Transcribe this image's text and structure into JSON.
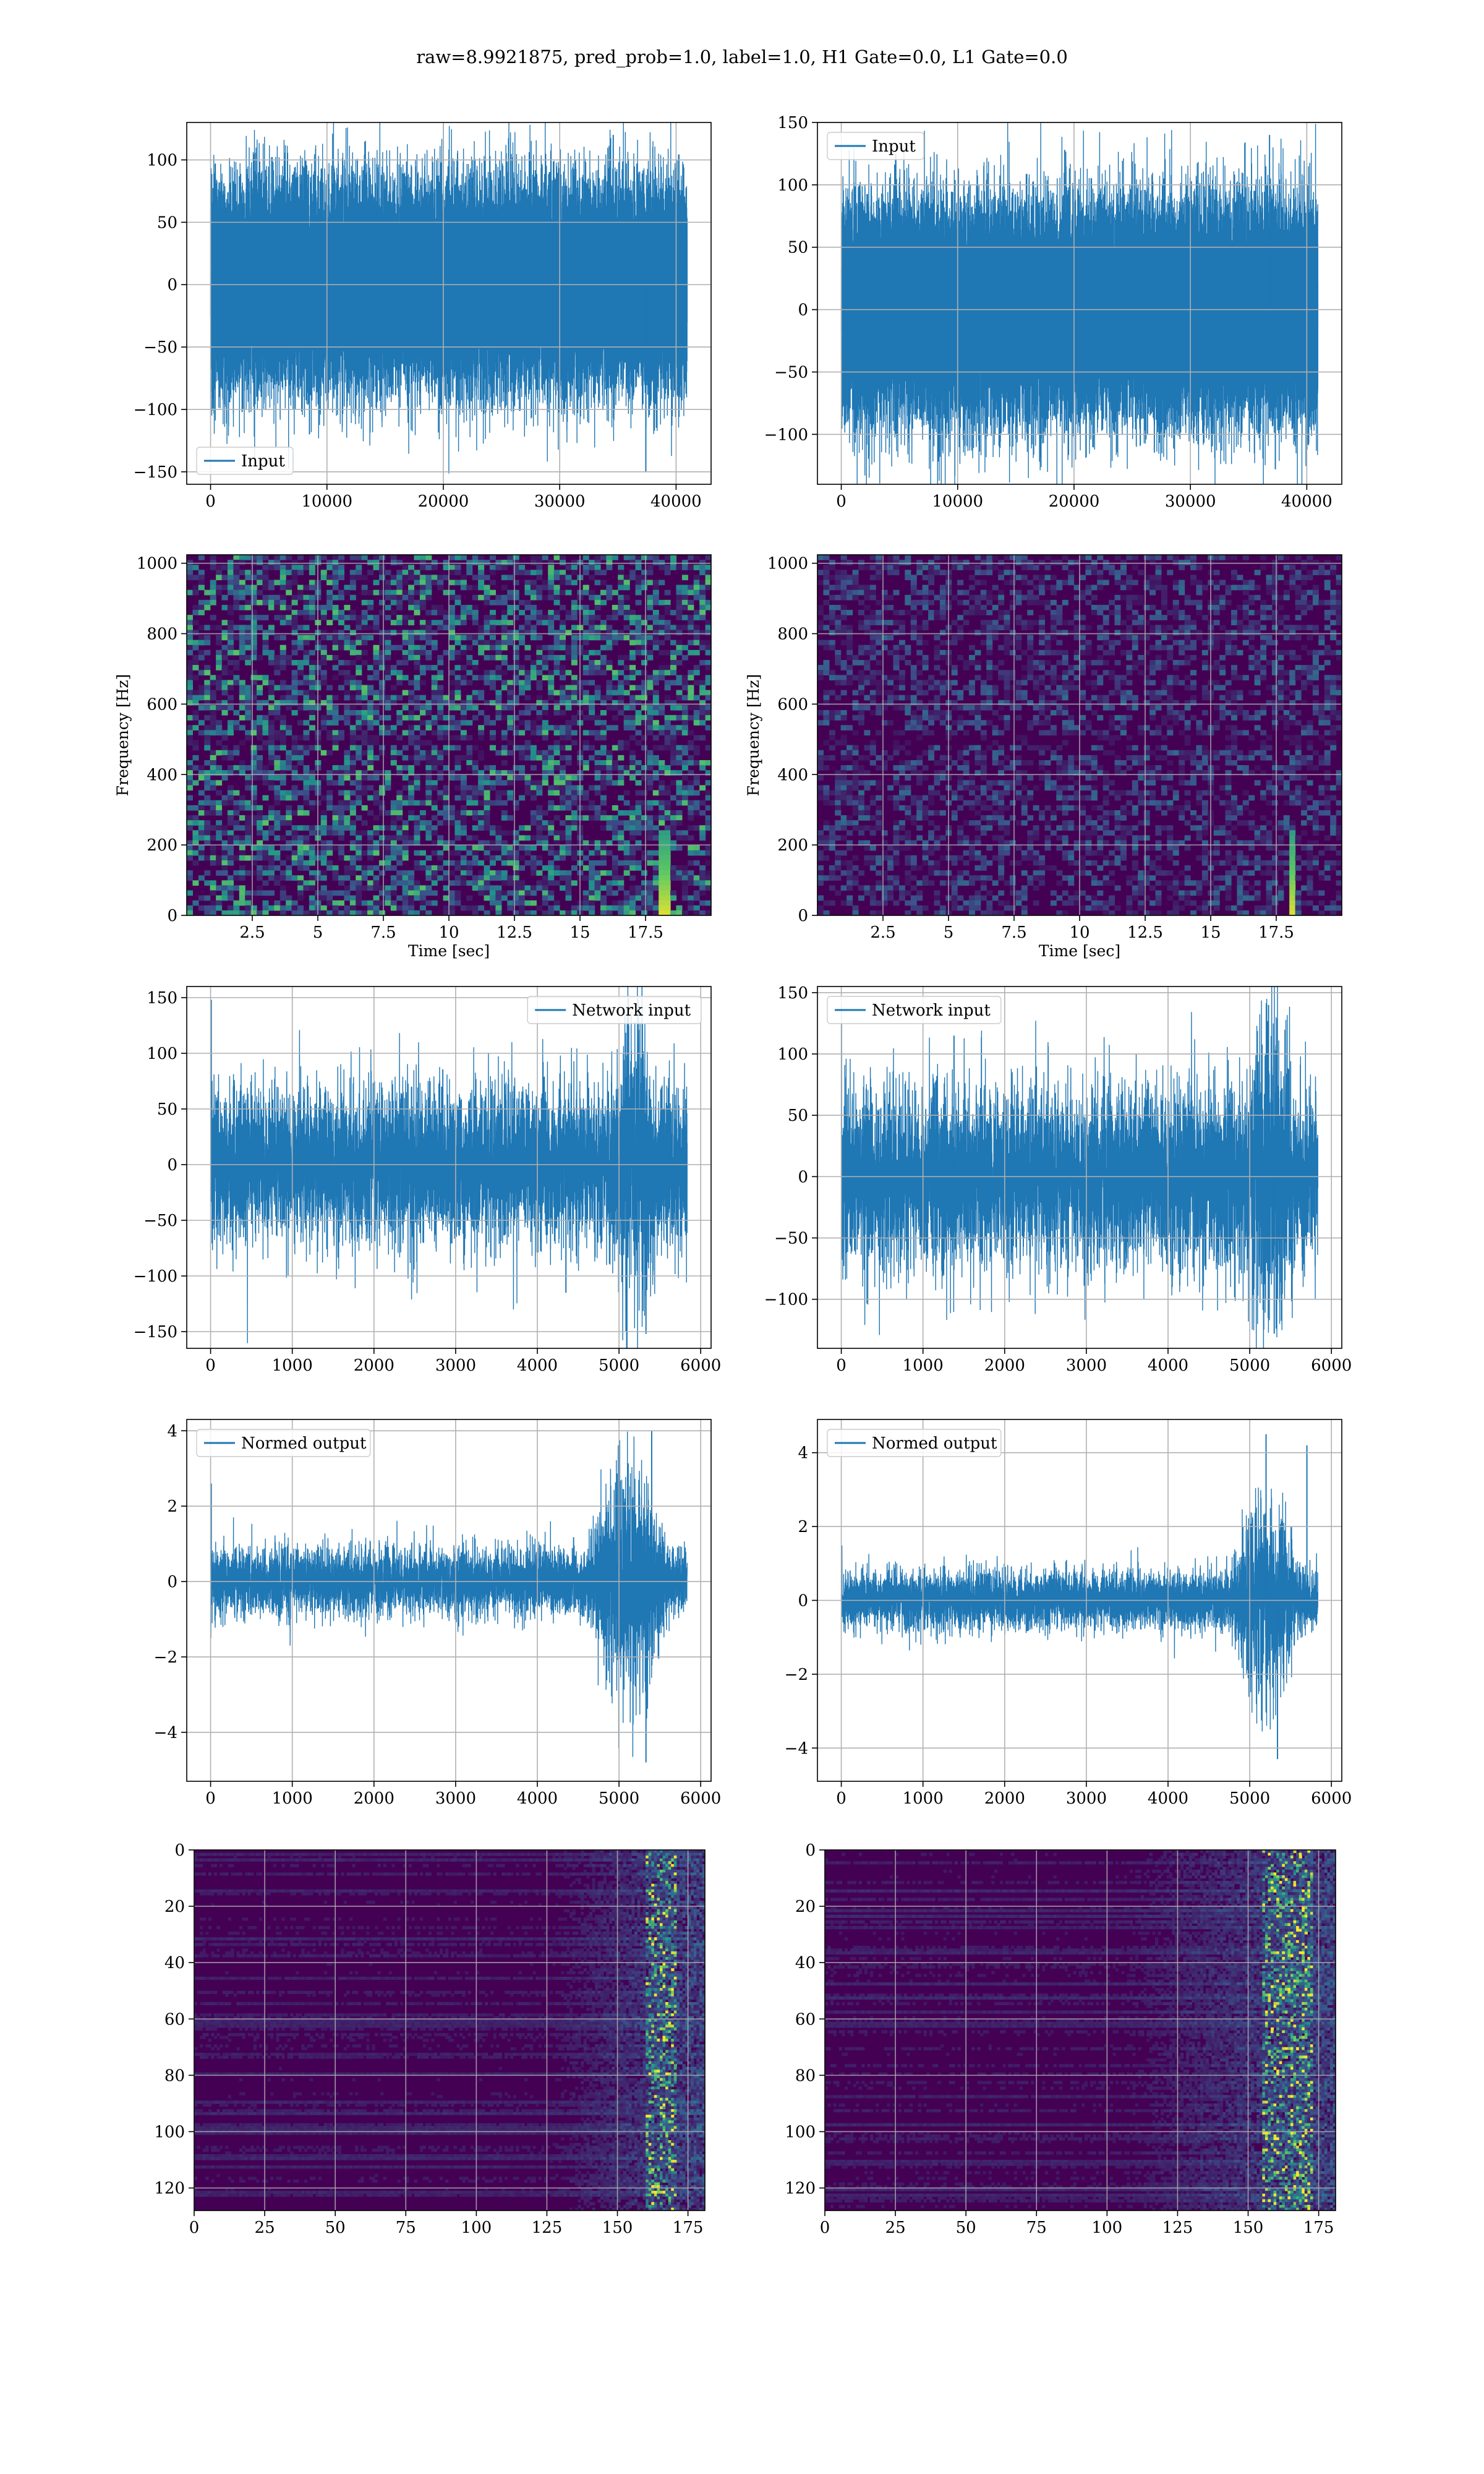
{
  "title": "raw=8.9921875, pred_prob=1.0, label=1.0, H1 Gate=0.0, L1 Gate=0.0",
  "colors": {
    "line": "#1f77b4",
    "viridis_low": "#440154",
    "viridis_mid": "#21918c",
    "viridis_high": "#fde725",
    "grid": "#b0b0b0"
  },
  "chart_data": [
    {
      "id": "h1-input",
      "type": "line",
      "series": [
        {
          "name": "Input",
          "n": 40960,
          "amplitude": 38
        }
      ],
      "xlim": [
        -2048,
        43008
      ],
      "ylim": [
        -160,
        130
      ],
      "xticks": [
        0,
        10000,
        20000,
        30000,
        40000
      ],
      "yticks": [
        -150,
        -100,
        -50,
        0,
        50,
        100
      ],
      "legend_position": "lower-left",
      "grid": true,
      "spikes": [
        [
          37400,
          -150
        ],
        [
          34600,
          120
        ],
        [
          8500,
          -120
        ]
      ]
    },
    {
      "id": "l1-input",
      "type": "line",
      "series": [
        {
          "name": "Input",
          "n": 40960,
          "amplitude": 40
        }
      ],
      "xlim": [
        -2048,
        43008
      ],
      "ylim": [
        -140,
        150
      ],
      "xticks": [
        0,
        10000,
        20000,
        30000,
        40000
      ],
      "yticks": [
        -100,
        -50,
        0,
        50,
        100,
        150
      ],
      "legend_position": "upper-left",
      "grid": true,
      "spikes": [
        [
          36800,
          140
        ],
        [
          37300,
          -128
        ],
        [
          19200,
          128
        ]
      ]
    },
    {
      "id": "h1-spectrogram",
      "type": "heatmap",
      "xlabel": "Time [sec]",
      "ylabel": "Frequency [Hz]",
      "xlim": [
        0,
        20
      ],
      "ylim": [
        0,
        1024
      ],
      "xticks": [
        2.5,
        5.0,
        7.5,
        10.0,
        12.5,
        15.0,
        17.5
      ],
      "yticks": [
        0,
        200,
        400,
        600,
        800,
        1000
      ],
      "intensity": 0.45,
      "grid": true,
      "colormap": "viridis",
      "event_time": 18.2
    },
    {
      "id": "l1-spectrogram",
      "type": "heatmap",
      "xlabel": "Time [sec]",
      "ylabel": "Frequency [Hz]",
      "xlim": [
        0,
        20
      ],
      "ylim": [
        0,
        1024
      ],
      "xticks": [
        2.5,
        5.0,
        7.5,
        10.0,
        12.5,
        15.0,
        17.5
      ],
      "yticks": [
        0,
        200,
        400,
        600,
        800,
        1000
      ],
      "intensity": 0.22,
      "grid": true,
      "colormap": "viridis",
      "event_time": 18.1
    },
    {
      "id": "h1-network-input",
      "type": "line",
      "series": [
        {
          "name": "Network input",
          "n": 5835,
          "amplitude": 36
        }
      ],
      "xlim": [
        -292,
        6127
      ],
      "ylim": [
        -165,
        160
      ],
      "xticks": [
        0,
        1000,
        2000,
        3000,
        4000,
        5000,
        6000
      ],
      "yticks": [
        -150,
        -100,
        -50,
        0,
        50,
        100,
        150
      ],
      "legend_position": "upper-right",
      "grid": true,
      "event": [
        4900,
        5600,
        1.9
      ],
      "spikes": [
        [
          8,
          148
        ],
        [
          5330,
          -152
        ],
        [
          4350,
          -115
        ]
      ]
    },
    {
      "id": "l1-network-input",
      "type": "line",
      "series": [
        {
          "name": "Network input",
          "n": 5835,
          "amplitude": 37
        }
      ],
      "xlim": [
        -292,
        6127
      ],
      "ylim": [
        -140,
        155
      ],
      "xticks": [
        0,
        1000,
        2000,
        3000,
        4000,
        5000,
        6000
      ],
      "yticks": [
        -100,
        -50,
        0,
        50,
        100,
        150
      ],
      "legend_position": "upper-left",
      "grid": true,
      "event": [
        4950,
        5650,
        1.9
      ],
      "spikes": [
        [
          5230,
          140
        ],
        [
          5300,
          -128
        ],
        [
          1380,
          115
        ]
      ]
    },
    {
      "id": "h1-normed-output",
      "type": "line",
      "series": [
        {
          "name": "Normed output",
          "n": 5835,
          "amplitude": 0.45
        }
      ],
      "xlim": [
        -292,
        6127
      ],
      "ylim": [
        -5.3,
        4.3
      ],
      "xticks": [
        0,
        1000,
        2000,
        3000,
        4000,
        5000,
        6000
      ],
      "yticks": [
        -4,
        -2,
        0,
        2,
        4
      ],
      "legend_position": "upper-left",
      "grid": true,
      "event": [
        4600,
        5835,
        3.2
      ],
      "spikes": [
        [
          8,
          2.6
        ],
        [
          5330,
          -4.8
        ],
        [
          5400,
          4.0
        ]
      ]
    },
    {
      "id": "l1-normed-output",
      "type": "line",
      "series": [
        {
          "name": "Normed output",
          "n": 5835,
          "amplitude": 0.4
        }
      ],
      "xlim": [
        -292,
        6127
      ],
      "ylim": [
        -4.9,
        4.9
      ],
      "xticks": [
        0,
        1000,
        2000,
        3000,
        4000,
        5000,
        6000
      ],
      "yticks": [
        -4,
        -2,
        0,
        2,
        4
      ],
      "legend_position": "upper-left",
      "grid": true,
      "event": [
        4750,
        5835,
        3.4
      ],
      "spikes": [
        [
          5200,
          4.5
        ],
        [
          5340,
          -4.3
        ],
        [
          5700,
          4.2
        ]
      ]
    },
    {
      "id": "h1-feature-map",
      "type": "heatmap",
      "xlim": [
        0,
        181
      ],
      "ylim": [
        128,
        0
      ],
      "xticks": [
        0,
        25,
        50,
        75,
        100,
        125,
        150,
        175
      ],
      "yticks": [
        0,
        20,
        40,
        60,
        80,
        100,
        120
      ],
      "grid": true,
      "colormap": "viridis",
      "activity_start": 125,
      "hotspot": [
        160,
        170
      ]
    },
    {
      "id": "l1-feature-map",
      "type": "heatmap",
      "xlim": [
        0,
        181
      ],
      "ylim": [
        128,
        0
      ],
      "xticks": [
        0,
        25,
        50,
        75,
        100,
        125,
        150,
        175
      ],
      "yticks": [
        0,
        20,
        40,
        60,
        80,
        100,
        120
      ],
      "grid": true,
      "colormap": "viridis",
      "activity_start": 105,
      "hotspot": [
        155,
        172
      ]
    }
  ]
}
